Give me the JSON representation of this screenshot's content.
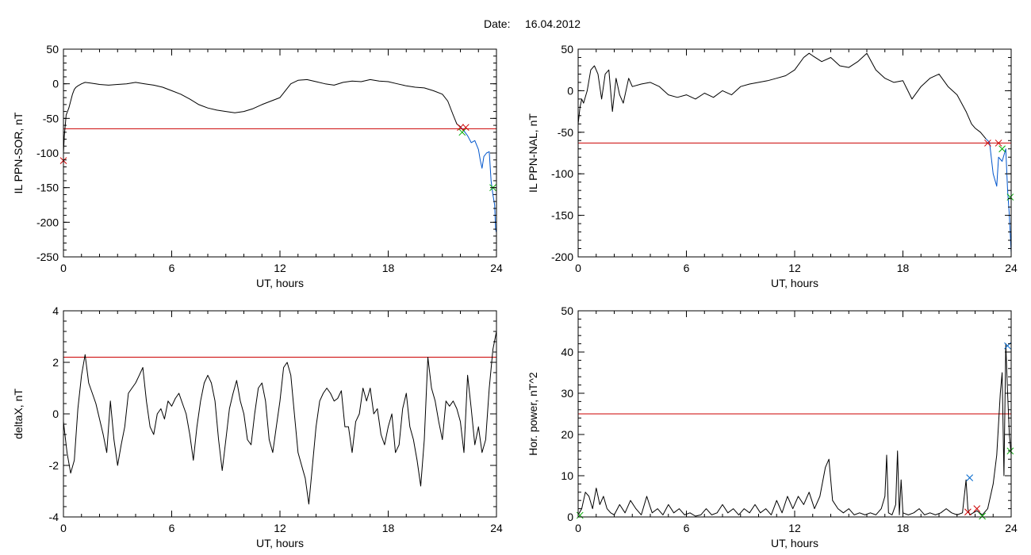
{
  "header": {
    "date_label": "Date:",
    "date_value": "16.04.2012"
  },
  "colors": {
    "threshold": "#cc0000",
    "series_main": "#000000",
    "series_event": "#0055cc",
    "marker_red": "#cc0000",
    "marker_green": "#00aa00",
    "marker_blue": "#0066cc"
  },
  "chart_data": [
    {
      "id": "p1",
      "type": "line",
      "title": "",
      "xlabel": "UT, hours",
      "ylabel": "IL PPN-SOR, nT",
      "xlim": [
        0,
        24
      ],
      "ylim": [
        -250,
        50
      ],
      "xticks": [
        0,
        6,
        12,
        18,
        24
      ],
      "yticks": [
        50,
        0,
        -50,
        -100,
        -150,
        -200,
        -250
      ],
      "threshold": -65,
      "series": [
        {
          "style": "main",
          "x": [
            0,
            0.05,
            0.1,
            0.15,
            0.2,
            0.3,
            0.4,
            0.5,
            0.6,
            0.7,
            0.8,
            1.0,
            1.2,
            1.5,
            1.8,
            2.0,
            2.5,
            3.0,
            3.5,
            4.0,
            4.5,
            5.0,
            5.5,
            6.0,
            6.5,
            7.0,
            7.5,
            8.0,
            8.5,
            9.0,
            9.5,
            10.0,
            10.5,
            11.0,
            11.5,
            12.0,
            12.3,
            12.6,
            13.0,
            13.5,
            14.0,
            14.5,
            15.0,
            15.5,
            16.0,
            16.5,
            17.0,
            17.5,
            18.0,
            18.5,
            19.0,
            19.5,
            20.0,
            20.5,
            21.0,
            21.3,
            21.6,
            21.8,
            22.0
          ],
          "y": [
            -100,
            -75,
            -60,
            -45,
            -42,
            -35,
            -25,
            -15,
            -8,
            -5,
            -3,
            0,
            2,
            1,
            0,
            -1,
            -2,
            -1,
            0,
            2,
            0,
            -2,
            -5,
            -10,
            -15,
            -22,
            -30,
            -35,
            -38,
            -40,
            -42,
            -40,
            -36,
            -30,
            -25,
            -20,
            -10,
            0,
            5,
            6,
            3,
            0,
            -2,
            2,
            4,
            3,
            6,
            4,
            3,
            0,
            -3,
            -5,
            -6,
            -10,
            -15,
            -25,
            -45,
            -58,
            -62
          ]
        },
        {
          "style": "event",
          "x": [
            22.0,
            22.2,
            22.4,
            22.6,
            22.8,
            23.0,
            23.1,
            23.2,
            23.3,
            23.45,
            23.6,
            23.7,
            23.8,
            23.9,
            23.95,
            24.0
          ],
          "y": [
            -62,
            -68,
            -75,
            -85,
            -82,
            -95,
            -110,
            -122,
            -105,
            -100,
            -98,
            -140,
            -160,
            -175,
            -210,
            -215
          ]
        }
      ],
      "markers": [
        {
          "x": 0.0,
          "y": -111,
          "color": "red"
        },
        {
          "x": 22.0,
          "y": -63,
          "color": "red"
        },
        {
          "x": 22.3,
          "y": -63,
          "color": "red"
        },
        {
          "x": 22.1,
          "y": -70,
          "color": "green"
        },
        {
          "x": 23.8,
          "y": -150,
          "color": "green"
        }
      ]
    },
    {
      "id": "p2",
      "type": "line",
      "title": "",
      "xlabel": "UT, hours",
      "ylabel": "IL PPN-NAL, nT",
      "xlim": [
        0,
        24
      ],
      "ylim": [
        -200,
        50
      ],
      "xticks": [
        0,
        6,
        12,
        18,
        24
      ],
      "yticks": [
        50,
        0,
        -50,
        -100,
        -150,
        -200
      ],
      "threshold": -63,
      "series": [
        {
          "style": "main",
          "x": [
            0,
            0.1,
            0.2,
            0.3,
            0.5,
            0.7,
            0.9,
            1.1,
            1.3,
            1.5,
            1.7,
            1.9,
            2.1,
            2.3,
            2.5,
            2.8,
            3.0,
            3.5,
            4.0,
            4.5,
            5.0,
            5.5,
            6.0,
            6.5,
            7.0,
            7.5,
            8.0,
            8.5,
            9.0,
            9.5,
            10.0,
            10.5,
            11.0,
            11.5,
            12.0,
            12.5,
            12.8,
            13.0,
            13.5,
            14.0,
            14.5,
            15.0,
            15.5,
            16.0,
            16.5,
            17.0,
            17.5,
            18.0,
            18.5,
            19.0,
            19.5,
            20.0,
            20.5,
            21.0,
            21.5,
            21.8,
            22.0,
            22.3,
            22.6
          ],
          "y": [
            -40,
            -20,
            -10,
            -15,
            0,
            25,
            30,
            20,
            -10,
            20,
            25,
            -25,
            15,
            -5,
            -15,
            15,
            5,
            8,
            10,
            5,
            -5,
            -8,
            -5,
            -10,
            -3,
            -8,
            0,
            -5,
            5,
            8,
            10,
            12,
            15,
            18,
            25,
            40,
            45,
            42,
            35,
            40,
            30,
            28,
            35,
            45,
            25,
            15,
            10,
            12,
            -10,
            5,
            15,
            20,
            5,
            -5,
            -25,
            -40,
            -45,
            -50,
            -58
          ]
        },
        {
          "style": "event",
          "x": [
            22.6,
            22.8,
            23.0,
            23.2,
            23.3,
            23.5,
            23.7,
            23.8,
            23.9,
            24.0
          ],
          "y": [
            -58,
            -62,
            -100,
            -115,
            -80,
            -85,
            -70,
            -120,
            -150,
            -195
          ]
        }
      ],
      "markers": [
        {
          "x": 22.7,
          "y": -63,
          "color": "red"
        },
        {
          "x": 23.3,
          "y": -63,
          "color": "red"
        },
        {
          "x": 23.5,
          "y": -70,
          "color": "green"
        },
        {
          "x": 23.95,
          "y": -128,
          "color": "green"
        }
      ]
    },
    {
      "id": "p3",
      "type": "line",
      "title": "",
      "xlabel": "UT, hours",
      "ylabel": "deltaX, nT",
      "xlim": [
        0,
        24
      ],
      "ylim": [
        -4,
        4
      ],
      "xticks": [
        0,
        6,
        12,
        18,
        24
      ],
      "yticks": [
        4,
        2,
        0,
        -2,
        -4
      ],
      "threshold": 2.2,
      "series": [
        {
          "style": "main",
          "x": [
            0,
            0.2,
            0.4,
            0.6,
            0.8,
            1.0,
            1.2,
            1.4,
            1.6,
            1.8,
            2.0,
            2.2,
            2.4,
            2.6,
            2.8,
            3.0,
            3.2,
            3.4,
            3.6,
            3.8,
            4.0,
            4.2,
            4.4,
            4.6,
            4.8,
            5.0,
            5.2,
            5.4,
            5.6,
            5.8,
            6.0,
            6.2,
            6.4,
            6.6,
            6.8,
            7.0,
            7.2,
            7.4,
            7.6,
            7.8,
            8.0,
            8.2,
            8.4,
            8.6,
            8.8,
            9.0,
            9.2,
            9.4,
            9.6,
            9.8,
            10.0,
            10.2,
            10.4,
            10.6,
            10.8,
            11.0,
            11.2,
            11.4,
            11.6,
            11.8,
            12.0,
            12.2,
            12.4,
            12.6,
            12.8,
            13.0,
            13.2,
            13.4,
            13.6,
            13.8,
            14.0,
            14.2,
            14.4,
            14.6,
            14.8,
            15.0,
            15.2,
            15.4,
            15.6,
            15.8,
            16.0,
            16.2,
            16.4,
            16.6,
            16.8,
            17.0,
            17.2,
            17.4,
            17.6,
            17.8,
            18.0,
            18.2,
            18.4,
            18.6,
            18.8,
            19.0,
            19.2,
            19.4,
            19.6,
            19.8,
            20.0,
            20.2,
            20.4,
            20.6,
            20.8,
            21.0,
            21.2,
            21.4,
            21.6,
            21.8,
            22.0,
            22.2,
            22.4,
            22.6,
            22.8,
            23.0,
            23.2,
            23.4,
            23.6,
            23.8,
            24.0
          ],
          "y": [
            -0.3,
            -1.5,
            -2.3,
            -1.8,
            0.2,
            1.5,
            2.3,
            1.2,
            0.8,
            0.4,
            -0.2,
            -0.8,
            -1.5,
            0.5,
            -1.0,
            -2.0,
            -1.2,
            -0.5,
            0.8,
            1.0,
            1.2,
            1.5,
            1.8,
            0.5,
            -0.5,
            -0.8,
            0.0,
            0.2,
            -0.2,
            0.5,
            0.3,
            0.6,
            0.8,
            0.4,
            0.0,
            -0.8,
            -1.8,
            -0.5,
            0.5,
            1.2,
            1.5,
            1.2,
            0.5,
            -1.0,
            -2.2,
            -1.0,
            0.2,
            0.8,
            1.3,
            0.5,
            0.0,
            -1.0,
            -1.2,
            0.0,
            1.0,
            1.2,
            0.5,
            -1.0,
            -1.5,
            -0.5,
            0.5,
            1.8,
            2.0,
            1.5,
            0.0,
            -1.5,
            -2.0,
            -2.5,
            -3.5,
            -2.0,
            -0.5,
            0.5,
            0.8,
            1.0,
            0.8,
            0.5,
            0.6,
            0.9,
            -0.5,
            -0.5,
            -1.5,
            -0.3,
            0.0,
            1.0,
            0.5,
            1.0,
            0.0,
            0.2,
            -0.8,
            -1.2,
            -0.5,
            0.0,
            -1.5,
            -1.2,
            0.2,
            0.8,
            -0.5,
            -1.0,
            -1.8,
            -2.8,
            -1.0,
            2.2,
            1.0,
            0.5,
            -0.3,
            -1.0,
            0.5,
            0.3,
            0.5,
            0.2,
            -0.3,
            -1.5,
            1.5,
            0.2,
            -1.2,
            -0.5,
            -1.5,
            -1.0,
            1.0,
            2.5,
            3.2
          ]
        }
      ],
      "markers": []
    },
    {
      "id": "p4",
      "type": "line",
      "title": "",
      "xlabel": "UT, hours",
      "ylabel": "Hor. power, nT^2",
      "xlim": [
        0,
        24
      ],
      "ylim": [
        0,
        50
      ],
      "xticks": [
        0,
        6,
        12,
        18,
        24
      ],
      "yticks": [
        50,
        40,
        30,
        20,
        10,
        0
      ],
      "threshold": 25,
      "series": [
        {
          "style": "main",
          "x": [
            0,
            0.2,
            0.4,
            0.6,
            0.8,
            1.0,
            1.2,
            1.4,
            1.6,
            1.8,
            2.0,
            2.3,
            2.6,
            2.9,
            3.2,
            3.5,
            3.8,
            4.1,
            4.4,
            4.7,
            5.0,
            5.3,
            5.6,
            5.9,
            6.2,
            6.5,
            6.8,
            7.1,
            7.4,
            7.7,
            8.0,
            8.3,
            8.6,
            8.9,
            9.2,
            9.5,
            9.8,
            10.1,
            10.4,
            10.7,
            11.0,
            11.3,
            11.6,
            11.9,
            12.2,
            12.5,
            12.8,
            13.1,
            13.4,
            13.7,
            13.9,
            14.1,
            14.4,
            14.7,
            15.0,
            15.3,
            15.6,
            15.9,
            16.2,
            16.5,
            16.8,
            17.0,
            17.1,
            17.2,
            17.4,
            17.6,
            17.7,
            17.8,
            17.9,
            18.0,
            18.3,
            18.6,
            18.9,
            19.2,
            19.5,
            19.8,
            20.1,
            20.4,
            20.7,
            21.0,
            21.3,
            21.5,
            21.6,
            21.7,
            21.9,
            22.1,
            22.4,
            22.7,
            23.0,
            23.2,
            23.4,
            23.5,
            23.6,
            23.7,
            23.8,
            23.9,
            24.0
          ],
          "y": [
            0.5,
            2,
            6,
            5,
            2,
            7,
            3,
            5,
            2,
            1,
            0.5,
            3,
            1,
            4,
            2,
            0.5,
            5,
            1,
            2,
            0.5,
            3,
            1,
            2,
            0.5,
            1,
            0.2,
            0.5,
            2,
            0.5,
            1,
            3,
            1,
            2,
            0.5,
            2,
            1,
            3,
            1,
            2,
            0.5,
            4,
            1,
            5,
            2,
            5,
            3,
            6,
            2,
            5,
            12,
            14,
            4,
            2,
            1,
            2,
            0.5,
            1,
            0.5,
            1,
            0.5,
            2,
            5,
            15,
            1,
            0.5,
            3,
            16,
            0.5,
            9,
            1,
            0.5,
            1,
            2,
            0.5,
            1,
            0.5,
            1,
            2,
            1,
            0.5,
            1,
            9,
            2,
            0.5,
            1,
            1.5,
            0.5,
            2,
            8,
            15,
            30,
            35,
            10,
            42,
            30,
            20,
            15
          ]
        }
      ],
      "markers": [
        {
          "x": 21.7,
          "y": 9.5,
          "color": "blue"
        },
        {
          "x": 21.6,
          "y": 1.2,
          "color": "red"
        },
        {
          "x": 22.1,
          "y": 2.0,
          "color": "red"
        },
        {
          "x": 22.4,
          "y": 0.2,
          "color": "green"
        },
        {
          "x": 23.8,
          "y": 41.5,
          "color": "blue"
        },
        {
          "x": 23.95,
          "y": 16.0,
          "color": "green"
        },
        {
          "x": 0.1,
          "y": 0.4,
          "color": "green"
        }
      ]
    }
  ]
}
